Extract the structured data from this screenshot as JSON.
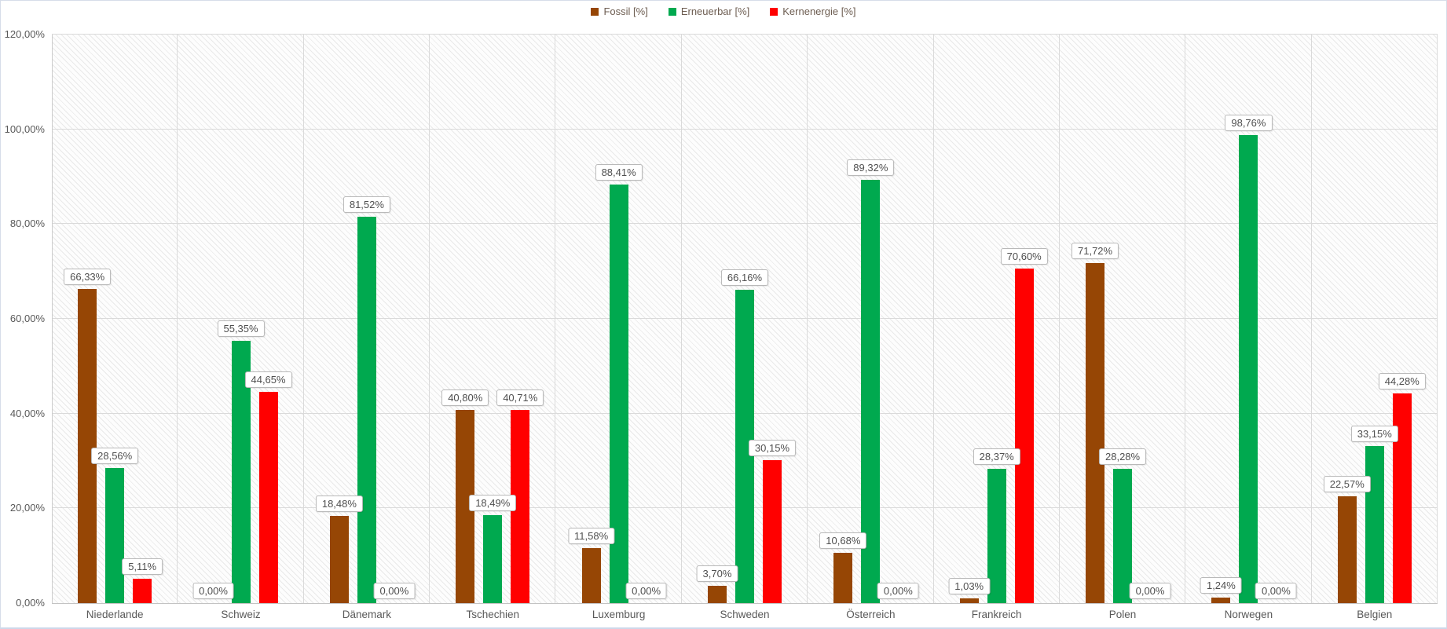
{
  "chart_data": {
    "type": "bar",
    "title": "",
    "categories": [
      "Niederlande",
      "Schweiz",
      "Dänemark",
      "Tschechien",
      "Luxemburg",
      "Schweden",
      "Österreich",
      "Frankreich",
      "Polen",
      "Norwegen",
      "Belgien"
    ],
    "series": [
      {
        "name": "Fossil [%]",
        "color": "#964605",
        "values": [
          66.33,
          0.0,
          18.48,
          40.8,
          11.58,
          3.7,
          10.68,
          1.03,
          71.72,
          1.24,
          22.57
        ],
        "labels": [
          "66,33%",
          "0,00%",
          "18,48%",
          "40,80%",
          "11,58%",
          "3,70%",
          "10,68%",
          "1,03%",
          "71,72%",
          "1,24%",
          "22,57%"
        ]
      },
      {
        "name": "Erneuerbar [%]",
        "color": "#00A94F",
        "values": [
          28.56,
          55.35,
          81.52,
          18.49,
          88.41,
          66.16,
          89.32,
          28.37,
          28.28,
          98.76,
          33.15
        ],
        "labels": [
          "28,56%",
          "55,35%",
          "81,52%",
          "18,49%",
          "88,41%",
          "66,16%",
          "89,32%",
          "28,37%",
          "28,28%",
          "98,76%",
          "33,15%"
        ]
      },
      {
        "name": "Kernenergie [%]",
        "color": "#FF0000",
        "values": [
          5.11,
          44.65,
          0.0,
          40.71,
          0.0,
          30.15,
          0.0,
          70.6,
          0.0,
          0.0,
          44.28
        ],
        "labels": [
          "5,11%",
          "44,65%",
          "0,00%",
          "40,71%",
          "0,00%",
          "30,15%",
          "0,00%",
          "70,60%",
          "0,00%",
          "0,00%",
          "44,28%"
        ]
      }
    ],
    "y_axis": {
      "min": 0,
      "max": 120,
      "step": 20,
      "tick_labels": [
        "0,00%",
        "20,00%",
        "40,00%",
        "60,00%",
        "80,00%",
        "100,00%",
        "120,00%"
      ]
    },
    "x_axis": {
      "label": ""
    },
    "legend_position": "top-center",
    "grid": "horizontal and vertical category separators, hatched plot background"
  },
  "styles": {
    "grid_color": "#dadada",
    "axis_text_color": "#595959",
    "legend_text_color": "#6d5d51",
    "label_box_border": "#b9b9b9",
    "plot_hatch_color": "#e9e9e9"
  }
}
